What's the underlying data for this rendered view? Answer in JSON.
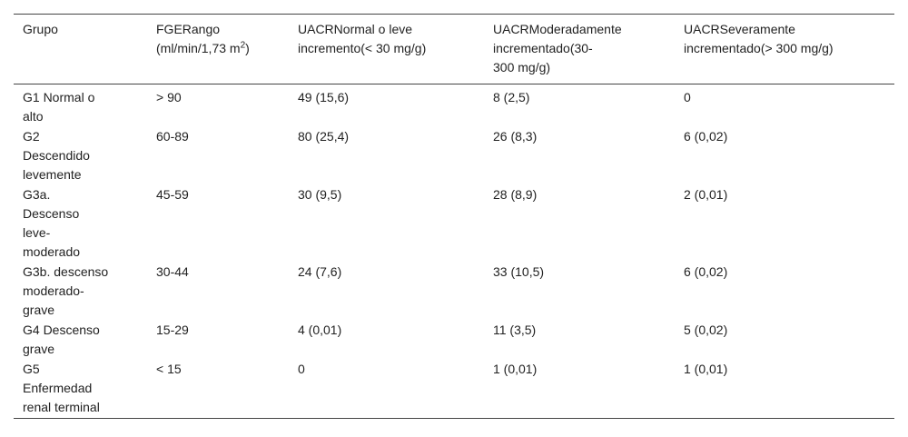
{
  "table": {
    "header": [
      [
        "Grupo"
      ],
      [
        "FGERango",
        {
          "text": "(ml/min/1,73 m",
          "sup": "2",
          "after": ")"
        }
      ],
      [
        "UACRNormal o leve",
        "incremento(< 30 mg/g)"
      ],
      [
        "UACRModeradamente",
        "incrementado(30-",
        "300 mg/g)"
      ],
      [
        "UACRSeveramente",
        "incrementado(> 300 mg/g)"
      ]
    ],
    "rows": [
      [
        [
          "G1 Normal o",
          "alto"
        ],
        [
          "> 90"
        ],
        [
          "49 (15,6)"
        ],
        [
          "8 (2,5)"
        ],
        [
          "0"
        ]
      ],
      [
        [
          "G2",
          "Descendido",
          "levemente"
        ],
        [
          "60-89"
        ],
        [
          "80 (25,4)"
        ],
        [
          "26 (8,3)"
        ],
        [
          "6 (0,02)"
        ]
      ],
      [
        [
          "G3a.",
          "Descenso",
          "leve-",
          "moderado"
        ],
        [
          "45-59"
        ],
        [
          "30 (9,5)"
        ],
        [
          "28 (8,9)"
        ],
        [
          "2 (0,01)"
        ]
      ],
      [
        [
          "G3b. descenso",
          "moderado-",
          "grave"
        ],
        [
          "30-44"
        ],
        [
          "24 (7,6)"
        ],
        [
          "33 (10,5)"
        ],
        [
          "6 (0,02)"
        ]
      ],
      [
        [
          "G4 Descenso",
          "grave"
        ],
        [
          "15-29"
        ],
        [
          "4 (0,01)"
        ],
        [
          "11 (3,5)"
        ],
        [
          "5 (0,02)"
        ]
      ],
      [
        [
          "G5",
          "Enfermedad",
          "renal terminal"
        ],
        [
          "< 15"
        ],
        [
          "0"
        ],
        [
          "1 (0,01)"
        ],
        [
          "1 (0,01)"
        ]
      ]
    ]
  }
}
